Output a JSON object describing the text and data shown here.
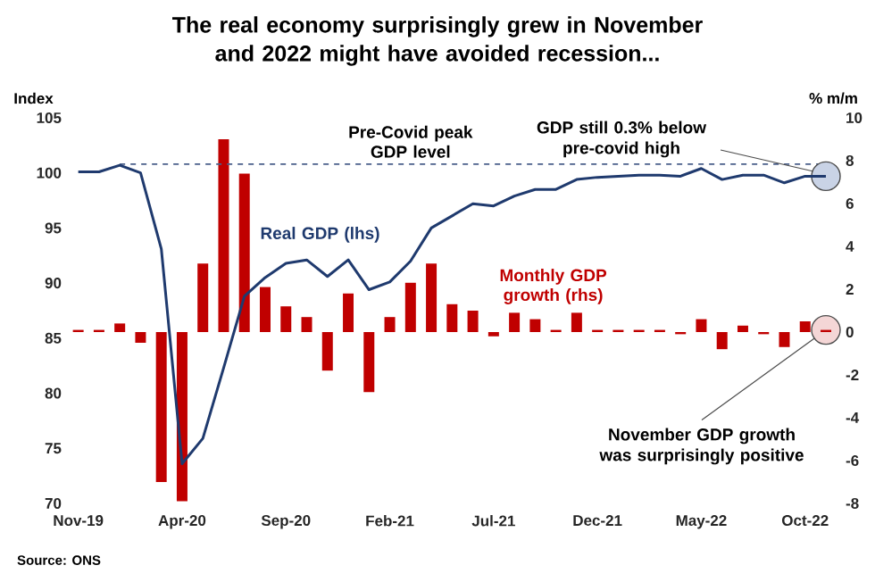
{
  "chart_data": {
    "type": "line",
    "title": "The real economy surprisingly grew in November and 2022 might have avoided recession...",
    "ylabel": "Index",
    "y2label": "% m/m",
    "categories": [
      "Nov-19",
      null,
      null,
      null,
      null,
      "Apr-20",
      null,
      null,
      null,
      null,
      "Sep-20",
      null,
      null,
      null,
      null,
      "Feb-21",
      null,
      null,
      null,
      null,
      "Jul-21",
      null,
      null,
      null,
      null,
      "Dec-21",
      null,
      null,
      null,
      null,
      "May-22",
      null,
      null,
      null,
      null,
      "Oct-22",
      null
    ],
    "series": [
      {
        "name": "Real GDP (lhs)",
        "type": "line",
        "color": "#1f3a6e",
        "values": [
          100.1,
          100.1,
          100.7,
          100.0,
          93.1,
          73.6,
          75.9,
          82.3,
          88.8,
          90.5,
          91.8,
          92.1,
          90.6,
          92.1,
          89.4,
          90.1,
          92.0,
          95.0,
          96.1,
          97.2,
          97.0,
          97.9,
          98.5,
          98.5,
          99.4,
          99.6,
          99.7,
          99.8,
          99.8,
          99.7,
          100.4,
          99.4,
          99.8,
          99.8,
          99.1,
          99.7,
          99.7
        ]
      },
      {
        "name": "Monthly GDP growth (rhs)",
        "type": "bar",
        "axis": "y2",
        "color": "#c00000",
        "values": [
          0.1,
          0.1,
          0.4,
          -0.5,
          -7.0,
          -7.9,
          3.2,
          9.0,
          7.4,
          2.1,
          1.2,
          0.7,
          -1.8,
          1.8,
          -2.8,
          0.7,
          2.3,
          3.2,
          1.3,
          1.0,
          -0.2,
          0.9,
          0.6,
          0.1,
          0.9,
          0.1,
          0.1,
          0.1,
          0.1,
          -0.1,
          0.6,
          -0.8,
          0.3,
          -0.1,
          -0.7,
          0.5,
          0.1
        ]
      }
    ],
    "ylim": [
      70,
      105
    ],
    "yticks": [
      70,
      75,
      80,
      85,
      90,
      95,
      100,
      105
    ],
    "y2lim": [
      -8,
      10
    ],
    "y2ticks": [
      -8,
      -6,
      -4,
      -2,
      0,
      2,
      4,
      6,
      8,
      10
    ],
    "ref_lines": [
      {
        "axis": "y",
        "value": 100.8,
        "label": "Pre-Covid peak GDP level",
        "color": "#4a5f8a",
        "line_style": "dashed"
      }
    ],
    "annotations": [
      {
        "text": "GDP still 0.3% below pre-covid high",
        "y": 99.7
      },
      "November GDP growth was surprisingly positive",
      "Source: ONS"
    ]
  }
}
